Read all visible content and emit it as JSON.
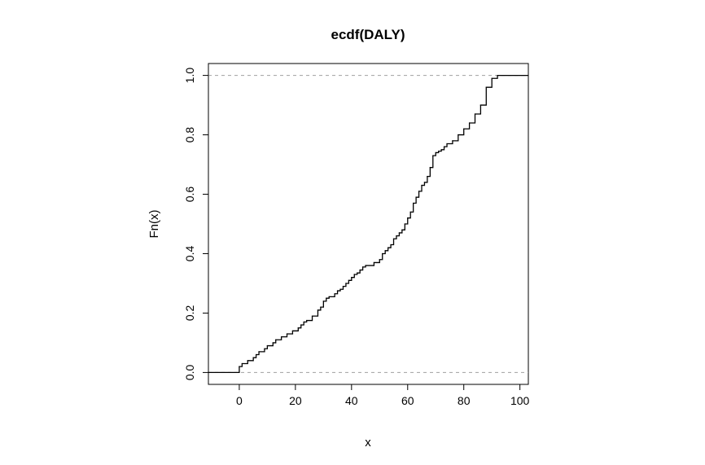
{
  "chart_data": {
    "type": "line",
    "title": "ecdf(DALY)",
    "xlabel": "x",
    "ylabel": "Fn(x)",
    "xlim": [
      -11,
      103
    ],
    "ylim": [
      -0.04,
      1.04
    ],
    "x_ticks": [
      0,
      20,
      40,
      60,
      80,
      100
    ],
    "y_ticks": [
      0.0,
      0.2,
      0.4,
      0.6,
      0.8,
      1.0
    ],
    "x_tick_labels": [
      "0",
      "20",
      "40",
      "60",
      "80",
      "100"
    ],
    "y_tick_labels": [
      "0.0",
      "0.2",
      "0.4",
      "0.6",
      "0.8",
      "1.0"
    ],
    "reference_lines_y": [
      0.0,
      1.0
    ],
    "grid": false,
    "series": [
      {
        "x": [
          0,
          1,
          3,
          5,
          6,
          7,
          9,
          10,
          12,
          13,
          15,
          17,
          19,
          21,
          22,
          23,
          24,
          26,
          28,
          29,
          30,
          31,
          32,
          34,
          35,
          36,
          37,
          38,
          39,
          40,
          41,
          42,
          43,
          44,
          45,
          48,
          50,
          51,
          52,
          53,
          54,
          55,
          56,
          57,
          58,
          59,
          60,
          61,
          62,
          63,
          64,
          65,
          66,
          67,
          68,
          69,
          70,
          71,
          72,
          73,
          74,
          76,
          78,
          80,
          82,
          84,
          86,
          88,
          90,
          92
        ],
        "y": [
          0.02,
          0.03,
          0.04,
          0.05,
          0.06,
          0.07,
          0.08,
          0.09,
          0.1,
          0.11,
          0.12,
          0.13,
          0.14,
          0.15,
          0.16,
          0.17,
          0.175,
          0.19,
          0.21,
          0.22,
          0.24,
          0.25,
          0.255,
          0.265,
          0.275,
          0.28,
          0.29,
          0.3,
          0.31,
          0.32,
          0.33,
          0.335,
          0.345,
          0.355,
          0.36,
          0.37,
          0.38,
          0.4,
          0.41,
          0.42,
          0.43,
          0.45,
          0.46,
          0.47,
          0.48,
          0.5,
          0.52,
          0.54,
          0.57,
          0.59,
          0.61,
          0.63,
          0.64,
          0.66,
          0.69,
          0.73,
          0.74,
          0.745,
          0.75,
          0.76,
          0.77,
          0.78,
          0.8,
          0.82,
          0.84,
          0.87,
          0.9,
          0.96,
          0.99,
          1.0
        ]
      }
    ]
  }
}
